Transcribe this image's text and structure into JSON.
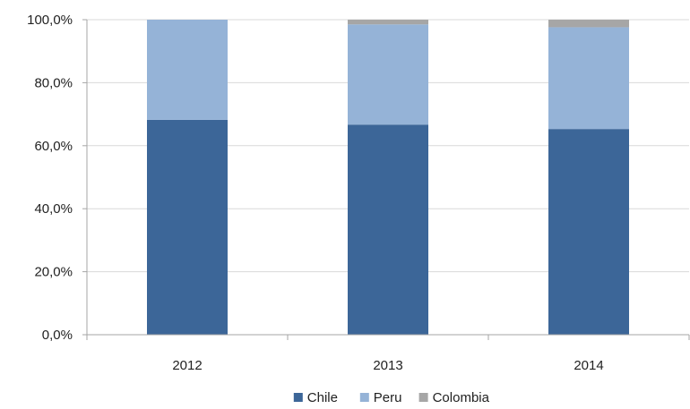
{
  "chart_data": {
    "type": "bar",
    "stacked": true,
    "categories": [
      "2012",
      "2013",
      "2014"
    ],
    "series": [
      {
        "name": "Chile",
        "values": [
          68.2,
          66.7,
          65.3
        ],
        "color": "#3c6698"
      },
      {
        "name": "Peru",
        "values": [
          31.8,
          31.8,
          32.3
        ],
        "color": "#95b3d7"
      },
      {
        "name": "Colombia",
        "values": [
          0.0,
          1.5,
          2.4
        ],
        "color": "#a6a6a6"
      }
    ],
    "y_ticks": [
      "0,0%",
      "20,0%",
      "40,0%",
      "60,0%",
      "80,0%",
      "100,0%"
    ],
    "y_tick_values": [
      0,
      20,
      40,
      60,
      80,
      100
    ],
    "ylim": [
      0,
      100
    ],
    "title": "",
    "xlabel": "",
    "ylabel": "",
    "grid": true,
    "legend_position": "bottom"
  }
}
